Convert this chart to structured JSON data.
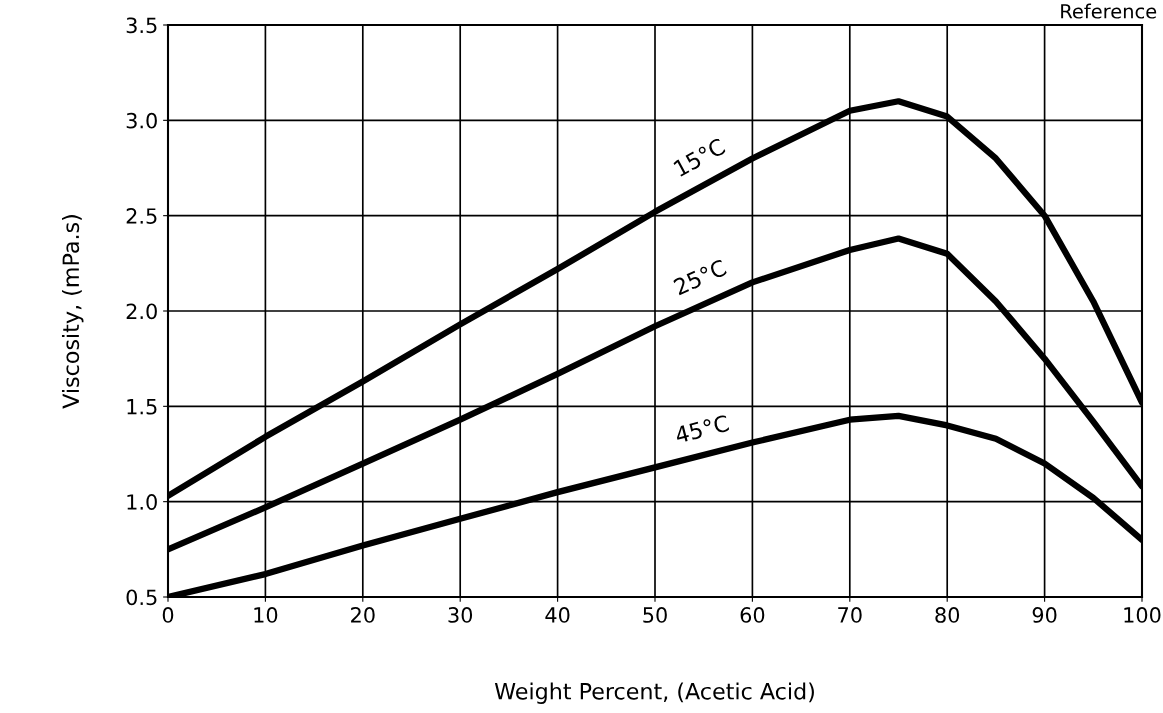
{
  "chart_data": {
    "type": "line",
    "xlabel": "Weight Percent, (Acetic Acid)",
    "ylabel": "Viscosity, (mPa.s)",
    "annotations": [
      "Reference"
    ],
    "x": [
      0,
      10,
      20,
      30,
      40,
      50,
      60,
      70,
      75,
      80,
      85,
      90,
      95,
      100
    ],
    "series": [
      {
        "name": "15°C",
        "color": "#000000",
        "values": [
          1.03,
          1.34,
          1.63,
          1.93,
          2.22,
          2.52,
          2.8,
          3.05,
          3.1,
          3.02,
          2.8,
          2.5,
          2.05,
          1.52
        ]
      },
      {
        "name": "25°C",
        "color": "#000000",
        "values": [
          0.75,
          0.97,
          1.2,
          1.43,
          1.67,
          1.92,
          2.15,
          2.32,
          2.38,
          2.3,
          2.05,
          1.75,
          1.42,
          1.08
        ]
      },
      {
        "name": "45°C",
        "color": "#000000",
        "values": [
          0.5,
          0.62,
          0.77,
          0.91,
          1.05,
          1.18,
          1.31,
          1.43,
          1.45,
          1.4,
          1.33,
          1.2,
          1.02,
          0.8
        ]
      }
    ],
    "xlim": [
      0,
      100
    ],
    "xticks": [
      0,
      10,
      20,
      30,
      40,
      50,
      60,
      70,
      80,
      90,
      100
    ],
    "ylim": [
      0.5,
      3.5
    ],
    "yticks": [
      0.5,
      {
        "value": 1,
        "label": "1.0"
      },
      1.5,
      {
        "value": 2,
        "label": "2.0"
      },
      2.5,
      {
        "value": 3,
        "label": "3.0"
      },
      3.5
    ],
    "grid": true,
    "marker": "none",
    "line_style": "solid"
  }
}
